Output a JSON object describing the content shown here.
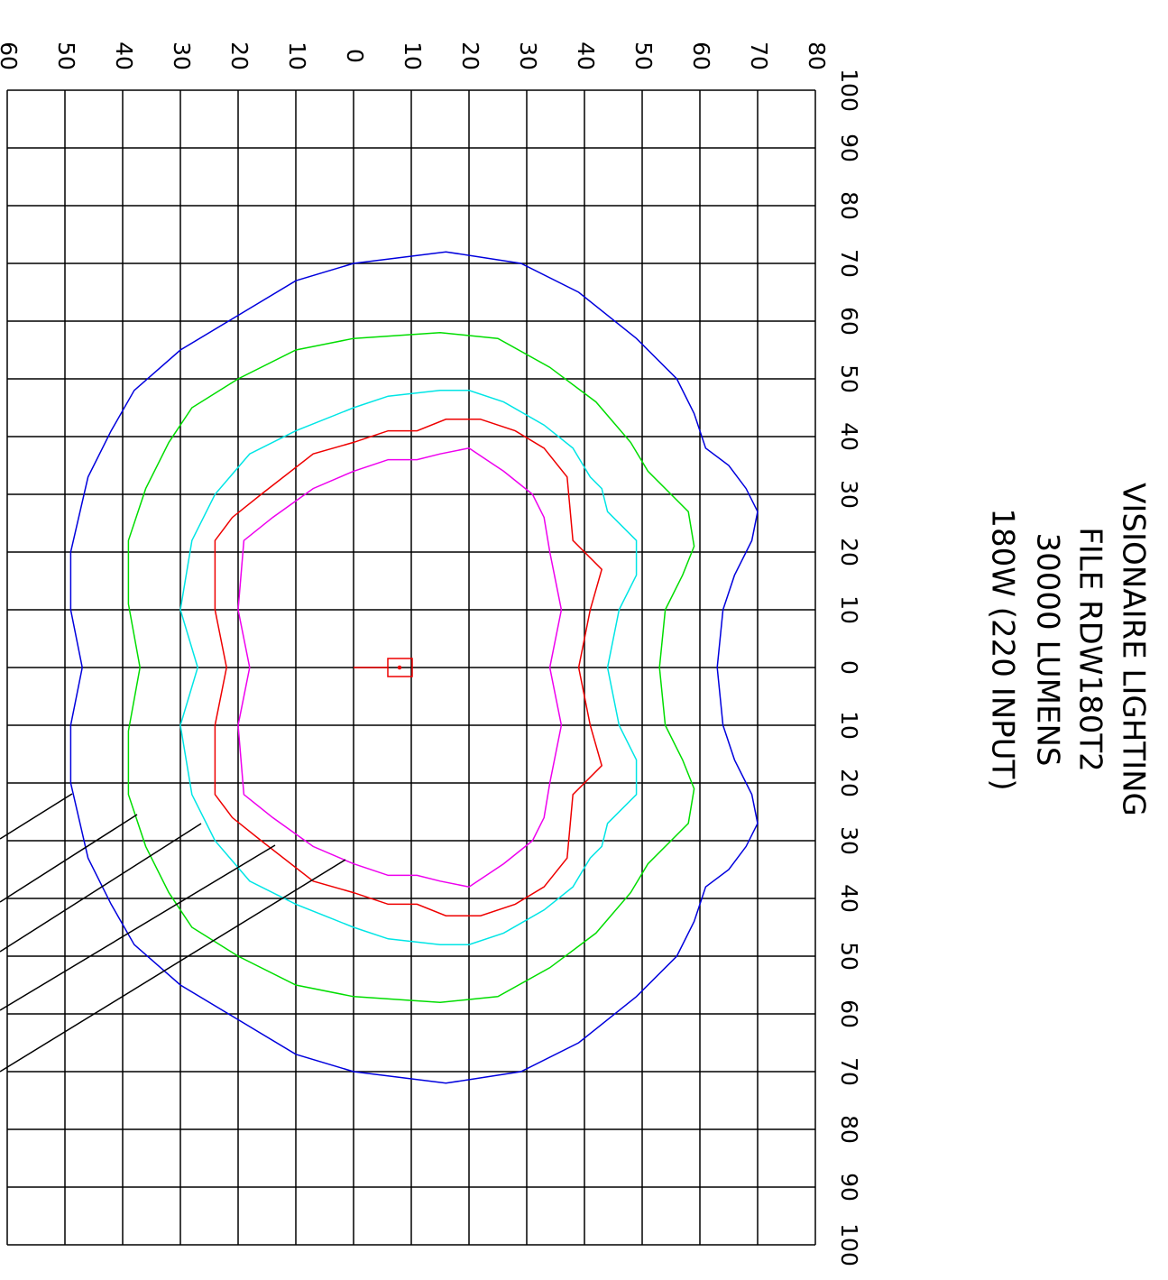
{
  "chart_data": {
    "type": "isolux",
    "title": [
      "VISIONAIRE LIGHTING",
      "FILE RDW180T2",
      "30000 LUMENS",
      "180W (220 INPUT)"
    ],
    "xlim": [
      -60,
      80
    ],
    "xticks": [
      {
        "value": -60,
        "label": "60"
      },
      {
        "value": -50,
        "label": "50"
      },
      {
        "value": -40,
        "label": "40"
      },
      {
        "value": -30,
        "label": "30"
      },
      {
        "value": -20,
        "label": "20"
      },
      {
        "value": -10,
        "label": "10"
      },
      0,
      10,
      20,
      30,
      40,
      50,
      60,
      70,
      80
    ],
    "ylim": [
      -100,
      100
    ],
    "yticks": [
      {
        "value": -100,
        "label": "100"
      },
      {
        "value": -90,
        "label": "90"
      },
      {
        "value": -80,
        "label": "80"
      },
      {
        "value": -70,
        "label": "70"
      },
      {
        "value": -60,
        "label": "60"
      },
      {
        "value": -50,
        "label": "50"
      },
      {
        "value": -40,
        "label": "40"
      },
      {
        "value": -30,
        "label": "30"
      },
      {
        "value": -20,
        "label": "20"
      },
      {
        "value": -10,
        "label": "10"
      },
      0,
      10,
      20,
      30,
      40,
      50,
      60,
      70,
      80,
      90,
      100
    ],
    "grid": true,
    "series": [
      {
        "color": "#0000dd",
        "x": [
          16,
          29,
          39,
          49,
          56,
          59,
          61,
          65,
          68,
          70,
          69,
          66,
          64,
          63,
          64,
          66,
          69,
          70,
          68,
          65,
          61,
          59,
          56,
          49,
          39,
          29,
          16,
          0,
          -10,
          -20,
          -30,
          -38,
          -42,
          -46,
          -49,
          -49,
          -47,
          -49,
          -49,
          -46,
          -42,
          -38,
          -30,
          -20,
          -10,
          0
        ],
        "y": [
          -72,
          -70,
          -65,
          -57,
          -50,
          -44,
          -38,
          -35,
          -31,
          -27,
          -22,
          -16,
          -10,
          0,
          10,
          16,
          22,
          27,
          31,
          35,
          38,
          44,
          50,
          57,
          65,
          70,
          72,
          70,
          67,
          61,
          55,
          48,
          41,
          33,
          20,
          10,
          0,
          -10,
          -20,
          -33,
          -41,
          -48,
          -55,
          -61,
          -67,
          -70
        ]
      },
      {
        "color": "#00dd00",
        "x": [
          15,
          25,
          34,
          42,
          48,
          51,
          55,
          58,
          59,
          57,
          54,
          53,
          54,
          57,
          59,
          58,
          55,
          51,
          48,
          42,
          34,
          25,
          15,
          0,
          -10,
          -20,
          -28,
          -32,
          -36,
          -39,
          -39,
          -37,
          -39,
          -39,
          -36,
          -32,
          -28,
          -20,
          -10,
          0
        ],
        "y": [
          -58,
          -57,
          -52,
          -46,
          -39,
          -34,
          -30,
          -27,
          -21,
          -16,
          -10,
          0,
          10,
          16,
          21,
          27,
          30,
          34,
          39,
          46,
          52,
          57,
          58,
          57,
          55,
          50,
          45,
          39,
          31,
          22,
          11,
          0,
          -11,
          -22,
          -31,
          -39,
          -45,
          -50,
          -55,
          -57
        ]
      },
      {
        "color": "#00e5e5",
        "x": [
          15,
          20,
          26,
          33,
          38,
          41,
          43,
          44,
          49,
          49,
          46,
          44,
          46,
          49,
          49,
          44,
          43,
          41,
          38,
          33,
          26,
          20,
          15,
          6,
          0,
          -10,
          -18,
          -24,
          -28,
          -30,
          -27,
          -30,
          -28,
          -24,
          -18,
          -10,
          0,
          6
        ],
        "y": [
          -48,
          -48,
          -46,
          -42,
          -38,
          -33,
          -31,
          -27,
          -22,
          -16,
          -10,
          0,
          10,
          16,
          22,
          27,
          31,
          33,
          38,
          42,
          46,
          48,
          48,
          47,
          45,
          41,
          37,
          30,
          22,
          10,
          0,
          -10,
          -22,
          -30,
          -37,
          -41,
          -45,
          -47
        ]
      },
      {
        "color": "#ee0000",
        "x": [
          22,
          28,
          33,
          37,
          38,
          43,
          41,
          39,
          41,
          43,
          38,
          37,
          33,
          28,
          22,
          16,
          11,
          6,
          0,
          -7,
          -16,
          -21,
          -24,
          -24,
          -22,
          -24,
          -24,
          -21,
          -16,
          -7,
          0,
          6,
          11,
          16
        ],
        "y": [
          -43,
          -41,
          -38,
          -33,
          -22,
          -17,
          -10,
          0,
          10,
          17,
          22,
          33,
          38,
          41,
          43,
          43,
          41,
          41,
          39,
          37,
          30,
          26,
          22,
          10,
          0,
          -10,
          -22,
          -26,
          -30,
          -37,
          -39,
          -41,
          -41,
          -43
        ]
      },
      {
        "color": "#ee00ee",
        "x": [
          20,
          26,
          31,
          33,
          34,
          36,
          34,
          36,
          34,
          33,
          31,
          26,
          20,
          15,
          11,
          6,
          0,
          -7,
          -14,
          -19,
          -20,
          -18,
          -20,
          -19,
          -14,
          -7,
          0,
          6,
          11,
          15
        ],
        "y": [
          -38,
          -34,
          -30,
          -26,
          -20,
          -10,
          0,
          10,
          20,
          26,
          30,
          34,
          38,
          37,
          36,
          36,
          34,
          31,
          26,
          22,
          10,
          0,
          -10,
          -22,
          -26,
          -31,
          -34,
          -36,
          -36,
          -37
        ]
      }
    ]
  }
}
